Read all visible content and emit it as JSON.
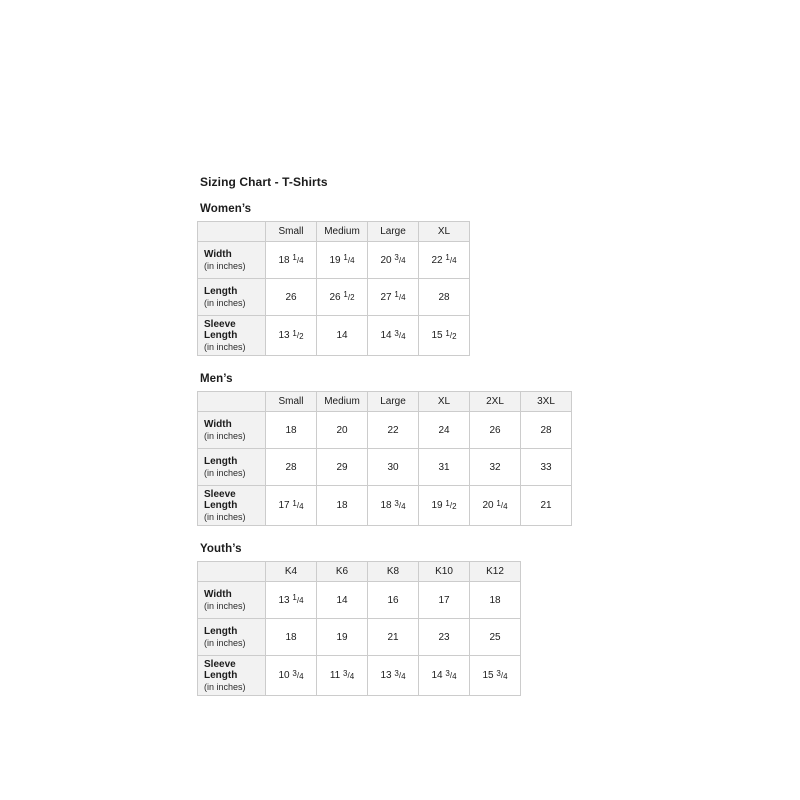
{
  "title": "Sizing Chart - T-Shirts",
  "colors": {
    "header_bg": "#f2f2f2",
    "border": "#cccccc",
    "text": "#1c1c1c",
    "page_bg": "#ffffff"
  },
  "tables": [
    {
      "section": "Women’s",
      "columns": [
        "Small",
        "Medium",
        "Large",
        "XL"
      ],
      "rows": [
        {
          "label": "Width",
          "sublabel": "(in inches)",
          "values": [
            "18 1/4",
            "19 1/4",
            "20 3/4",
            "22 1/4"
          ]
        },
        {
          "label": "Length",
          "sublabel": "(in inches)",
          "values": [
            "26",
            "26 1/2",
            "27 1/4",
            "28"
          ]
        },
        {
          "label": "Sleeve Length",
          "sublabel": "(in inches)",
          "values": [
            "13 1/2",
            "14",
            "14 3/4",
            "15 1/2"
          ]
        }
      ]
    },
    {
      "section": "Men’s",
      "columns": [
        "Small",
        "Medium",
        "Large",
        "XL",
        "2XL",
        "3XL"
      ],
      "rows": [
        {
          "label": "Width",
          "sublabel": "(in inches)",
          "values": [
            "18",
            "20",
            "22",
            "24",
            "26",
            "28"
          ]
        },
        {
          "label": "Length",
          "sublabel": "(in inches)",
          "values": [
            "28",
            "29",
            "30",
            "31",
            "32",
            "33"
          ]
        },
        {
          "label": "Sleeve Length",
          "sublabel": "(in inches)",
          "values": [
            "17 1/4",
            "18",
            "18 3/4",
            "19 1/2",
            "20 1/4",
            "21"
          ]
        }
      ]
    },
    {
      "section": "Youth’s",
      "columns": [
        "K4",
        "K6",
        "K8",
        "K10",
        "K12"
      ],
      "rows": [
        {
          "label": "Width",
          "sublabel": "(in inches)",
          "values": [
            "13 1/4",
            "14",
            "16",
            "17",
            "18"
          ]
        },
        {
          "label": "Length",
          "sublabel": "(in inches)",
          "values": [
            "18",
            "19",
            "21",
            "23",
            "25"
          ]
        },
        {
          "label": "Sleeve Length",
          "sublabel": "(in inches)",
          "values": [
            "10 3/4",
            "11 3/4",
            "13 3/4",
            "14 3/4",
            "15 3/4"
          ]
        }
      ]
    }
  ]
}
